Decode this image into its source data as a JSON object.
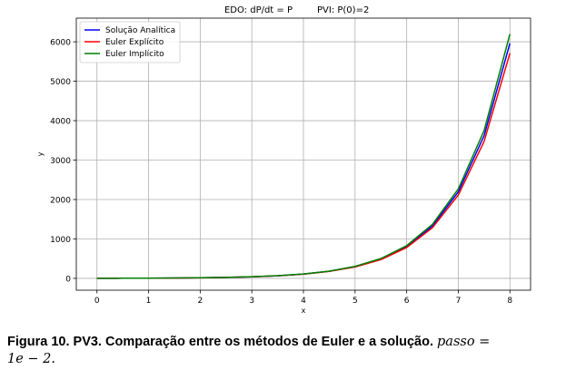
{
  "chart_data": {
    "type": "line",
    "title_left": "EDO: dP/dt = P",
    "title_right": "PVI: P(0)=2",
    "xlabel": "x",
    "ylabel": "y",
    "xlim": [
      -0.4,
      8.4
    ],
    "ylim": [
      -300,
      6600
    ],
    "x_ticks": [
      0,
      1,
      2,
      3,
      4,
      5,
      6,
      7,
      8
    ],
    "y_ticks": [
      0,
      1000,
      2000,
      3000,
      4000,
      5000,
      6000
    ],
    "grid": true,
    "legend_position": "top-left",
    "x": [
      0,
      0.5,
      1,
      1.5,
      2,
      2.5,
      3,
      3.5,
      4,
      4.5,
      5,
      5.5,
      6,
      6.5,
      7,
      7.5,
      8
    ],
    "series": [
      {
        "name": "Solução Analítica",
        "color": "#0000ff",
        "values": [
          2,
          3.3,
          5.4,
          9.0,
          14.8,
          24.4,
          40.2,
          66.2,
          109.2,
          180.0,
          296.8,
          489.3,
          806.9,
          1330.3,
          2193.3,
          3616.1,
          5962
        ]
      },
      {
        "name": "Euler Explícito",
        "color": "#ff0000",
        "values": [
          2,
          3.3,
          5.4,
          8.9,
          14.6,
          24.0,
          39.6,
          65.2,
          107.2,
          176.2,
          289.6,
          476.0,
          782.3,
          1285.8,
          2113.5,
          3474.0,
          5710
        ]
      },
      {
        "name": "Euler Implícito",
        "color": "#008000",
        "values": [
          2,
          3.3,
          5.5,
          9.1,
          15.0,
          24.8,
          40.9,
          67.4,
          111.3,
          183.8,
          303.8,
          502.1,
          829.9,
          1371.8,
          2267.5,
          3748.3,
          6196
        ]
      }
    ]
  },
  "caption": {
    "main": "Figura 10.  PV3.  Comparação entre os métodos de Euler e a solução.",
    "math_line1": "passo =",
    "math_line2": "1e − 2."
  }
}
